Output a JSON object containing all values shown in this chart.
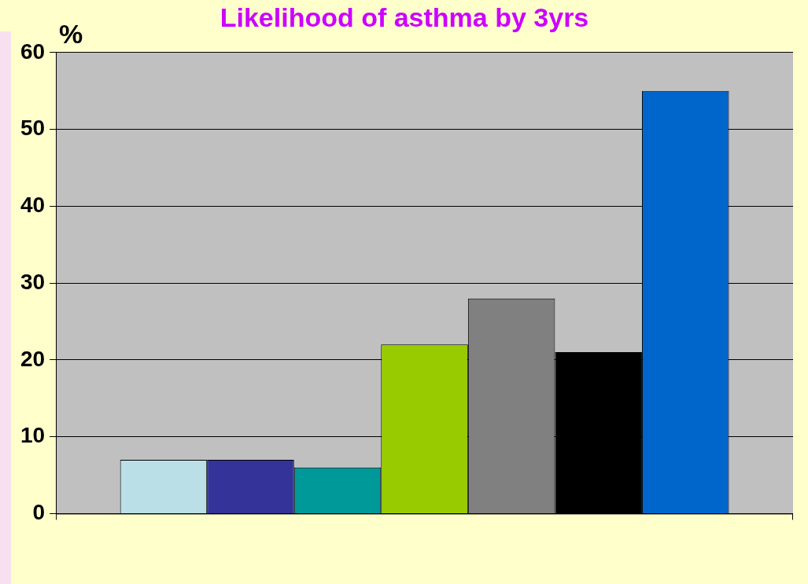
{
  "chart_data": {
    "type": "bar",
    "title": "Likelihood of asthma by 3yrs",
    "ylabel": "%",
    "categories": [
      null
    ],
    "series": [
      {
        "color": "#bbdfe6",
        "values": [
          7
        ]
      },
      {
        "color": "#333399",
        "values": [
          7
        ]
      },
      {
        "color": "#009999",
        "values": [
          6
        ]
      },
      {
        "color": "#99cc00",
        "values": [
          22
        ]
      },
      {
        "color": "#808080",
        "values": [
          28
        ]
      },
      {
        "color": "#000000",
        "values": [
          21
        ]
      },
      {
        "color": "#0066cc",
        "values": [
          55
        ]
      }
    ],
    "ylim": [
      0,
      60
    ],
    "yticks": [
      0,
      10,
      20,
      30,
      40,
      50,
      60
    ],
    "grid": "y",
    "legend": false
  }
}
